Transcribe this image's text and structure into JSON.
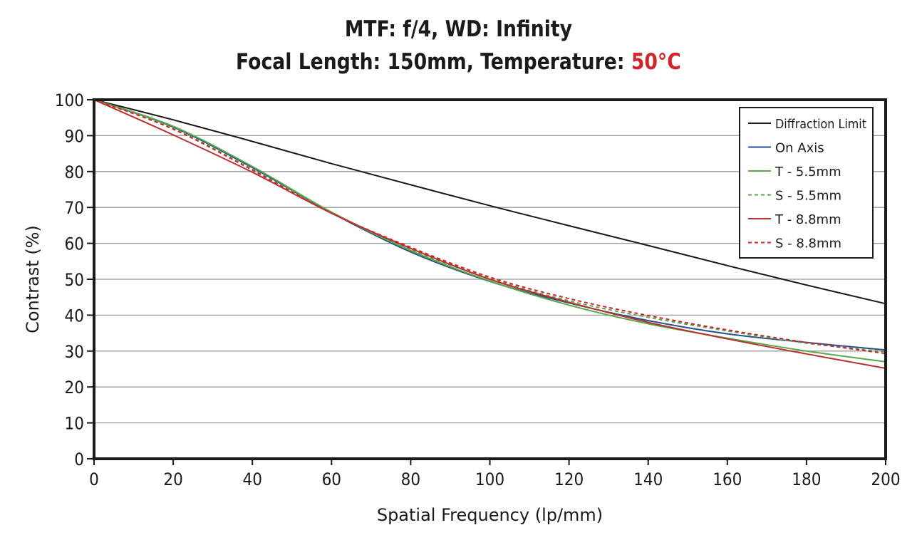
{
  "chart_data": {
    "type": "line",
    "title_line1": "MTF: f/4, WD: Infinity",
    "title_line2_prefix": "Focal Length: 150mm, Temperature: ",
    "title_line2_temp": "50°C",
    "xlabel": "Spatial Frequency (lp/mm)",
    "ylabel": "Contrast (%)",
    "xlim": [
      0,
      200
    ],
    "ylim": [
      0,
      100
    ],
    "x_ticks": [
      0,
      20,
      40,
      60,
      80,
      100,
      120,
      140,
      160,
      180,
      200
    ],
    "y_ticks": [
      0,
      10,
      20,
      30,
      40,
      50,
      60,
      70,
      80,
      90,
      100
    ],
    "grid": "horizontal",
    "legend_position": "top-right",
    "series": [
      {
        "name": "Diffraction Limit",
        "color": "#1a1a1a",
        "dash": "solid",
        "x": [
          0,
          20,
          40,
          60,
          80,
          100,
          120,
          140,
          160,
          180,
          200
        ],
        "y": [
          100,
          94.4,
          88.4,
          82.2,
          76.3,
          70.5,
          64.9,
          59.4,
          53.8,
          48.4,
          43.2
        ]
      },
      {
        "name": "On Axis",
        "color": "#2b4f8f",
        "dash": "solid",
        "x": [
          0,
          20,
          40,
          60,
          80,
          100,
          120,
          140,
          160,
          180,
          200
        ],
        "y": [
          100,
          92.4,
          81.1,
          68.5,
          57.6,
          49.4,
          43.4,
          38.5,
          34.8,
          32.4,
          30.3
        ]
      },
      {
        "name": "T - 5.5mm",
        "color": "#5aa84a",
        "dash": "solid",
        "x": [
          0,
          20,
          40,
          60,
          80,
          100,
          120,
          140,
          160,
          180,
          200
        ],
        "y": [
          100,
          92.6,
          81.4,
          68.7,
          58.0,
          49.5,
          42.8,
          37.6,
          33.6,
          30.0,
          27.0
        ]
      },
      {
        "name": "S - 5.5mm",
        "color": "#5aa84a",
        "dash": "dashed",
        "x": [
          0,
          20,
          40,
          60,
          80,
          100,
          120,
          140,
          160,
          180,
          200
        ],
        "y": [
          100,
          92.0,
          80.6,
          68.6,
          58.3,
          50.2,
          44.0,
          39.4,
          35.6,
          32.2,
          29.8
        ]
      },
      {
        "name": "T - 8.8mm",
        "color": "#b8312f",
        "dash": "solid",
        "x": [
          0,
          20,
          40,
          60,
          80,
          100,
          120,
          140,
          160,
          180,
          200
        ],
        "y": [
          100,
          90.2,
          79.8,
          68.4,
          58.6,
          50.0,
          43.6,
          38.0,
          33.4,
          29.2,
          25.2
        ]
      },
      {
        "name": "S - 8.8mm",
        "color": "#d1232a",
        "dash": "dashed",
        "x": [
          0,
          20,
          40,
          60,
          80,
          100,
          120,
          140,
          160,
          180,
          200
        ],
        "y": [
          100,
          91.8,
          80.4,
          68.4,
          58.9,
          50.6,
          44.6,
          39.9,
          35.9,
          32.4,
          29.3
        ]
      }
    ]
  }
}
